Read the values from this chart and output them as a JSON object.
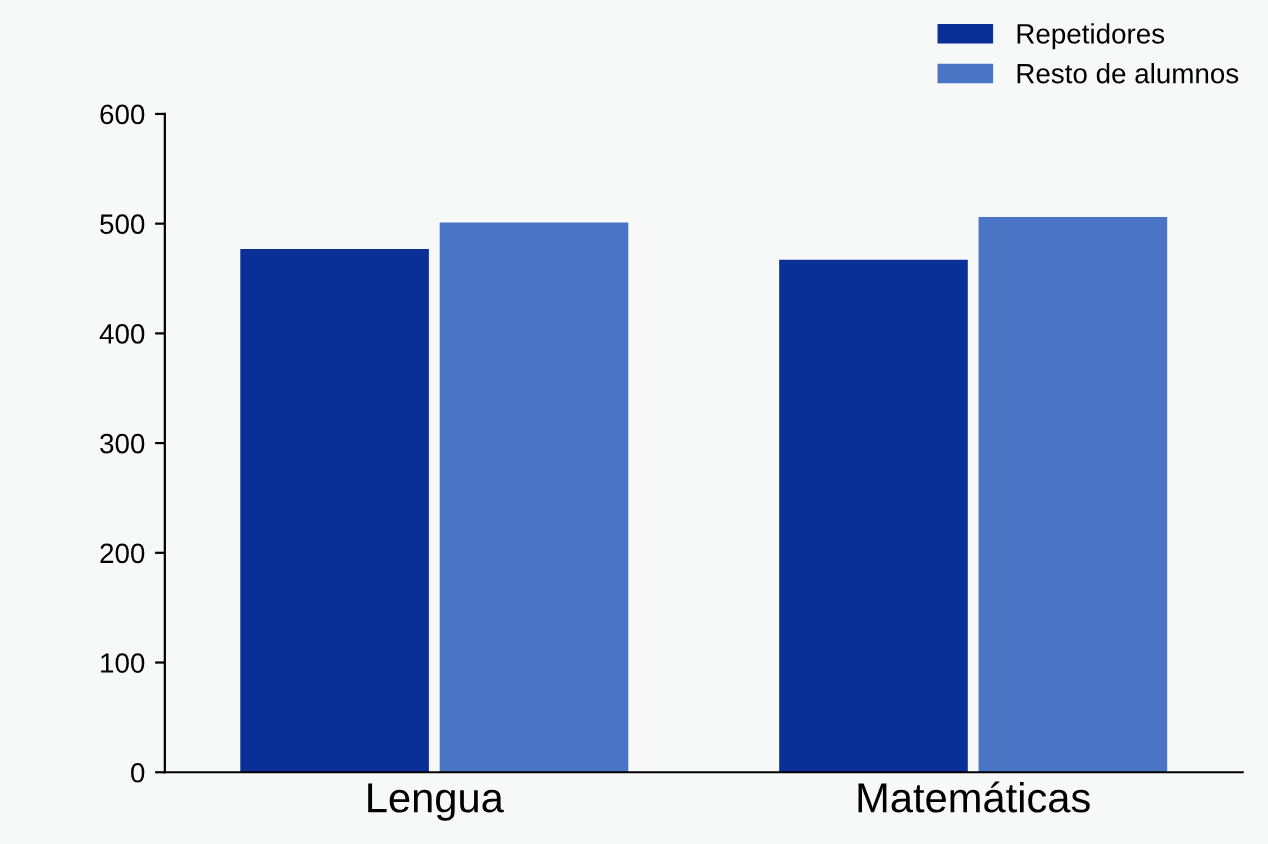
{
  "chart_data": {
    "type": "bar",
    "categories": [
      "Lengua",
      "Matemáticas"
    ],
    "series": [
      {
        "name": "Repetidores",
        "color": "#0a2f96",
        "values": [
          477,
          467
        ]
      },
      {
        "name": "Resto de alumnos",
        "color": "#4a74c4",
        "values": [
          501,
          506
        ]
      }
    ],
    "ylim": [
      0,
      600
    ],
    "yticks": [
      0,
      100,
      200,
      300,
      400,
      500,
      600
    ],
    "grid": false,
    "legend": "top right"
  }
}
